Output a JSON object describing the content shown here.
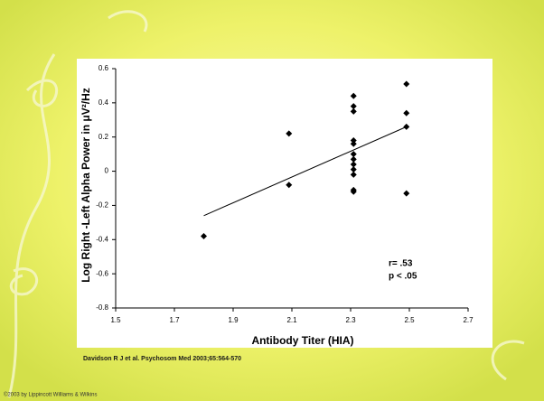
{
  "chart_data": {
    "type": "scatter",
    "x_label": "Antibody Titer (HIA)",
    "y_label": "Log Right -Left Alpha Power in μV²/Hz",
    "x": [
      1.8,
      2.09,
      2.09,
      2.31,
      2.31,
      2.31,
      2.31,
      2.31,
      2.31,
      2.31,
      2.31,
      2.31,
      2.31,
      2.31,
      2.31,
      2.49,
      2.49,
      2.49,
      2.49
    ],
    "values": [
      -0.38,
      0.22,
      -0.08,
      0.44,
      0.38,
      0.35,
      0.18,
      0.16,
      0.1,
      0.07,
      0.04,
      0.01,
      -0.02,
      -0.11,
      -0.12,
      0.51,
      0.34,
      0.26,
      -0.13
    ],
    "color": "#000000",
    "trendline": {
      "x": [
        1.8,
        2.49
      ],
      "y": [
        -0.26,
        0.26
      ]
    },
    "xlim": [
      1.5,
      2.7
    ],
    "xticks": [
      1.5,
      1.7,
      1.9,
      2.1,
      2.3,
      2.5,
      2.7
    ],
    "ylim": [
      -0.8,
      0.6
    ],
    "yticks": [
      -0.8,
      -0.6,
      -0.4,
      -0.2,
      0,
      0.2,
      0.4,
      0.6
    ],
    "annotations": [
      "r= .53",
      "p < .05"
    ]
  },
  "citation": "Davidson R J et al. Psychosom Med 2003;65:564-570",
  "footer": "©2003 by Lippincott Williams & Wilkins"
}
